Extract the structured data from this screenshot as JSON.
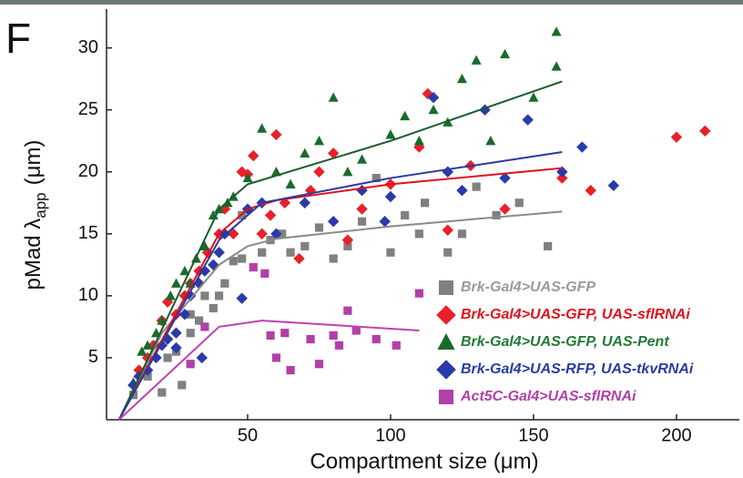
{
  "chart_data": {
    "type": "scatter",
    "panel_label": "F",
    "x_label": "Compartment size (μm)",
    "y_label": {
      "main": "pMad λ",
      "sub": "app",
      "unit": "(μm)"
    },
    "xlim": [
      0,
      222
    ],
    "ylim": [
      0,
      33.5
    ],
    "xticks": [
      50,
      100,
      150,
      200
    ],
    "yticks": [
      5,
      10,
      15,
      20,
      25,
      30
    ],
    "series": [
      {
        "name": "Brk-Gal4>UAS-GFP",
        "color": "#808080",
        "line_color": "#8a8a8a",
        "text_color": "#9a9a9a",
        "marker": "square",
        "x": [
          10,
          15,
          20,
          22,
          25,
          27,
          30,
          33,
          38,
          40,
          42,
          45,
          48,
          55,
          58,
          62,
          65,
          70,
          75,
          80,
          85,
          90,
          95,
          100,
          105,
          110,
          112,
          120,
          125,
          130,
          137,
          145,
          155,
          48,
          30,
          35
        ],
        "values": [
          2,
          3.5,
          2.2,
          5,
          5.5,
          2.8,
          7,
          8,
          9,
          10,
          11,
          12.8,
          13,
          13.5,
          14.5,
          15,
          13.5,
          14,
          15.5,
          13,
          14,
          16,
          19.5,
          13.5,
          16.5,
          15,
          17.5,
          13.5,
          15,
          18.8,
          16.5,
          17.5,
          14,
          16.5,
          8.5,
          10
        ],
        "fit": {
          "x": [
            5,
            20,
            40,
            50,
            60,
            100,
            160
          ],
          "values": [
            0,
            7,
            12.5,
            14,
            14.6,
            15.6,
            16.8
          ]
        }
      },
      {
        "name": "Brk-Gal4>UAS-GFP, UAS-sflRNAi",
        "color": "#e8202a",
        "line_color": "#e01020",
        "text_color": "#e0101a",
        "marker": "diamond",
        "x": [
          12,
          15,
          17,
          20,
          22,
          25,
          28,
          30,
          33,
          36,
          40,
          42,
          45,
          48,
          50,
          52,
          55,
          58,
          60,
          63,
          68,
          72,
          75,
          80,
          85,
          90,
          100,
          110,
          113,
          120,
          128,
          140,
          160,
          170,
          200,
          210
        ],
        "values": [
          4,
          5,
          6,
          8,
          9.5,
          8.5,
          10,
          11,
          12,
          13.5,
          15,
          17,
          15,
          20,
          19.8,
          21.3,
          15,
          16.5,
          23,
          17.5,
          13,
          18.5,
          20,
          21.5,
          14.5,
          17,
          19,
          22,
          26.3,
          15.3,
          20.5,
          17,
          19.5,
          18.5,
          22.8,
          23.3
        ],
        "fit": {
          "x": [
            5,
            40,
            50,
            60,
            100,
            160
          ],
          "values": [
            0,
            15,
            17,
            17.7,
            19,
            20.3
          ]
        }
      },
      {
        "name": "Brk-Gal4>UAS-GFP, UAS-Pent",
        "color": "#1a6b2a",
        "line_color": "#1a5c2a",
        "text_color": "#1f7a35",
        "marker": "triangle",
        "x": [
          10,
          13,
          15,
          18,
          20,
          23,
          25,
          28,
          30,
          32,
          35,
          38,
          40,
          43,
          45,
          50,
          55,
          60,
          65,
          70,
          75,
          80,
          85,
          90,
          100,
          105,
          110,
          115,
          120,
          125,
          130,
          135,
          140,
          150,
          158,
          158
        ],
        "values": [
          3,
          5.5,
          6,
          7,
          8,
          10,
          11,
          12,
          11,
          13,
          14,
          16.5,
          17,
          17.5,
          18,
          19.5,
          23.5,
          20,
          19,
          21.5,
          22.5,
          26,
          20,
          21,
          23,
          24.5,
          22.5,
          25,
          24,
          27.5,
          29,
          22.5,
          29.5,
          26,
          28.5,
          31.3
        ],
        "fit": {
          "x": [
            5,
            40,
            50,
            100,
            160
          ],
          "values": [
            0,
            17,
            19,
            22.5,
            27.3
          ]
        }
      },
      {
        "name": "Brk-Gal4>UAS-RFP, UAS-tkvRNAi",
        "color": "#2a3aa8",
        "line_color": "#2a3aa0",
        "text_color": "#2a3a9e",
        "marker": "diamond",
        "x": [
          10,
          12,
          15,
          18,
          20,
          22,
          25,
          28,
          30,
          33,
          35,
          38,
          40,
          42,
          48,
          50,
          55,
          60,
          70,
          80,
          90,
          98,
          100,
          115,
          120,
          125,
          133,
          140,
          148,
          160,
          167,
          178,
          34,
          25
        ],
        "values": [
          2.8,
          3.5,
          4,
          5,
          6,
          6.5,
          7,
          8.5,
          10,
          11,
          12,
          12.5,
          13.5,
          15,
          9.8,
          17,
          17.5,
          15,
          17.5,
          16,
          18.5,
          16,
          18,
          26,
          20,
          18.5,
          25,
          19.5,
          24.2,
          20,
          22,
          18.9,
          5,
          5.8
        ],
        "fit": {
          "x": [
            5,
            40,
            55,
            100,
            160
          ],
          "values": [
            0,
            14.5,
            17.5,
            19.5,
            21.6
          ]
        }
      },
      {
        "name": "Act5C-Gal4>UAS-sflRNAi",
        "color": "#b040a8",
        "line_color": "#c040b0",
        "text_color": "#b040a8",
        "marker": "square",
        "x": [
          30,
          35,
          52,
          56,
          58,
          60,
          63,
          65,
          72,
          75,
          80,
          82,
          85,
          88,
          95,
          102,
          110
        ],
        "values": [
          4.5,
          7.5,
          12.3,
          11.8,
          6.8,
          5,
          7,
          4,
          6.5,
          4.5,
          6.8,
          6,
          8.8,
          7.2,
          6.5,
          6,
          10.2
        ],
        "fit": {
          "x": [
            5,
            40,
            55,
            110
          ],
          "values": [
            0,
            7.5,
            8,
            7.2
          ]
        }
      }
    ]
  }
}
